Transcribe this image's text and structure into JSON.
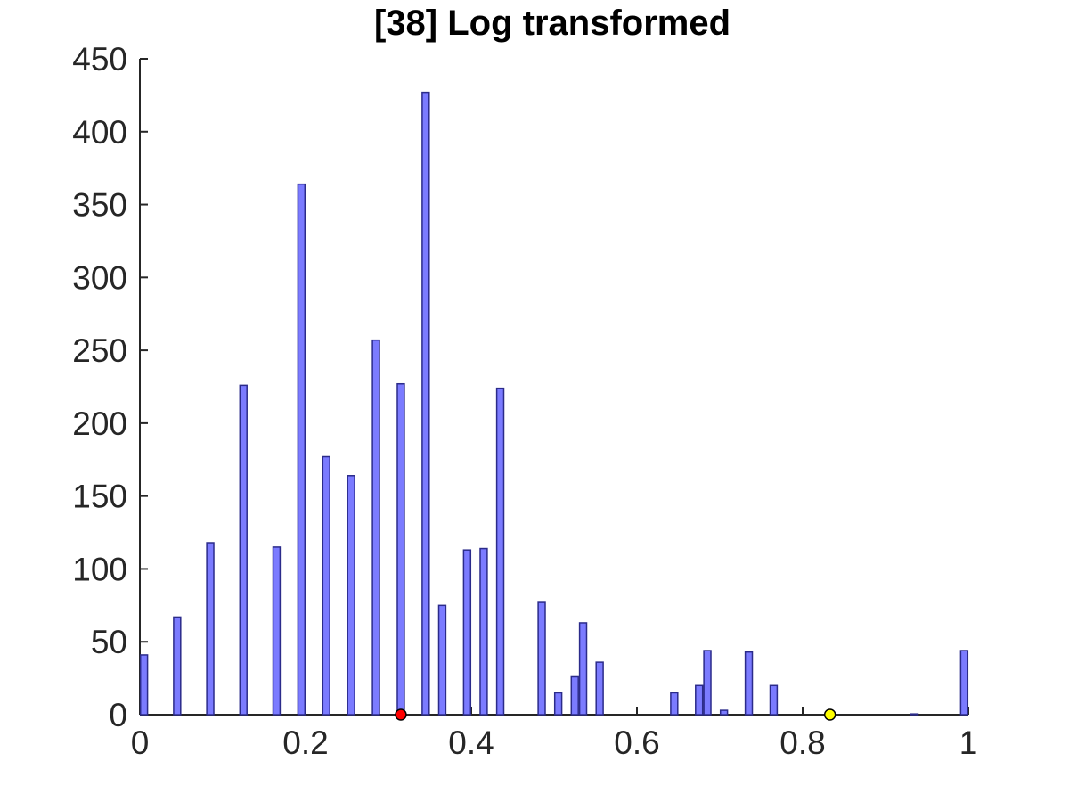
{
  "chart_data": {
    "type": "bar",
    "title": "[38] Log transformed",
    "xlabel": "",
    "ylabel": "",
    "xlim": [
      0,
      1
    ],
    "ylim": [
      0,
      450
    ],
    "xticks": [
      0,
      0.2,
      0.4,
      0.6,
      0.8,
      1
    ],
    "xtick_labels": [
      "0",
      "0.2",
      "0.4",
      "0.6",
      "0.8",
      "1"
    ],
    "yticks": [
      0,
      50,
      100,
      150,
      200,
      250,
      300,
      350,
      400,
      450
    ],
    "ytick_labels": [
      "0",
      "50",
      "100",
      "150",
      "200",
      "250",
      "300",
      "350",
      "400",
      "450"
    ],
    "bar_color": "#7b7bff",
    "bar_edge_color": "#2b2b8a",
    "bars": [
      {
        "x": 0.005,
        "y": 41
      },
      {
        "x": 0.045,
        "y": 67
      },
      {
        "x": 0.085,
        "y": 118
      },
      {
        "x": 0.125,
        "y": 226
      },
      {
        "x": 0.165,
        "y": 115
      },
      {
        "x": 0.195,
        "y": 364
      },
      {
        "x": 0.225,
        "y": 177
      },
      {
        "x": 0.255,
        "y": 164
      },
      {
        "x": 0.285,
        "y": 257
      },
      {
        "x": 0.315,
        "y": 227
      },
      {
        "x": 0.345,
        "y": 427
      },
      {
        "x": 0.365,
        "y": 75
      },
      {
        "x": 0.395,
        "y": 113
      },
      {
        "x": 0.415,
        "y": 114
      },
      {
        "x": 0.435,
        "y": 224
      },
      {
        "x": 0.485,
        "y": 77
      },
      {
        "x": 0.505,
        "y": 15
      },
      {
        "x": 0.525,
        "y": 26
      },
      {
        "x": 0.535,
        "y": 63
      },
      {
        "x": 0.555,
        "y": 36
      },
      {
        "x": 0.645,
        "y": 15
      },
      {
        "x": 0.675,
        "y": 20
      },
      {
        "x": 0.685,
        "y": 44
      },
      {
        "x": 0.705,
        "y": 3
      },
      {
        "x": 0.735,
        "y": 43
      },
      {
        "x": 0.765,
        "y": 20
      },
      {
        "x": 0.935,
        "y": 0.5
      },
      {
        "x": 0.995,
        "y": 44
      }
    ],
    "bar_width": 0.0085,
    "markers": [
      {
        "x": 0.315,
        "y": 0,
        "color": "#ff0000"
      },
      {
        "x": 0.833,
        "y": 0,
        "color": "#ffff00"
      }
    ]
  }
}
